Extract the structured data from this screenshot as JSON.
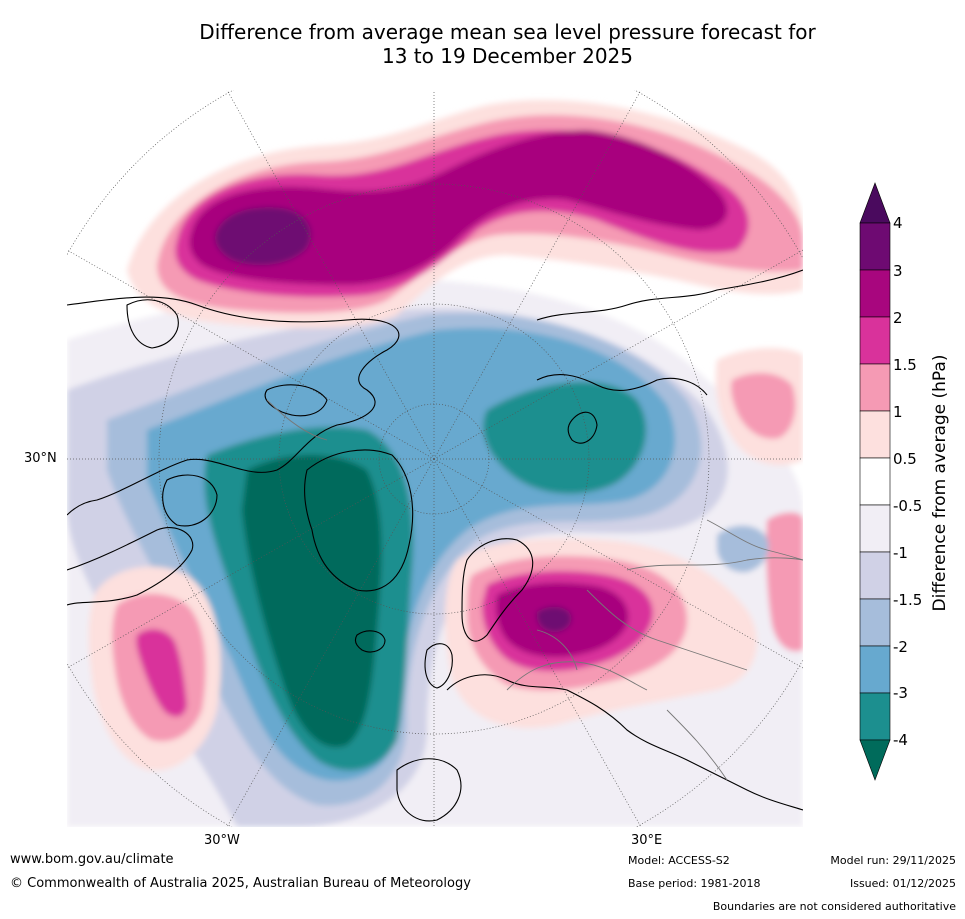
{
  "title": {
    "line1": "Difference from average mean sea level pressure forecast for",
    "line2": "13 to 19 December 2025"
  },
  "map": {
    "projection": "north polar stereographic",
    "lat_label": "30°N",
    "lon_label_left": "30°W",
    "lon_label_right": "30°E"
  },
  "colorbar": {
    "title": "Difference from average (hPa)",
    "ticks": [
      "4",
      "3",
      "2",
      "1.5",
      "1",
      "0.5",
      "-0.5",
      "-1",
      "-1.5",
      "-2",
      "-3",
      "-4"
    ],
    "bins": [
      {
        "range": "> 4",
        "color": "#4a0a5e"
      },
      {
        "range": "3 to 4",
        "color": "#6e0a72"
      },
      {
        "range": "2 to 3",
        "color": "#a8067e"
      },
      {
        "range": "1.5 to 2",
        "color": "#d9329b"
      },
      {
        "range": "1 to 1.5",
        "color": "#f59ab4"
      },
      {
        "range": "0.5 to 1",
        "color": "#fde0de"
      },
      {
        "range": "-0.5 to 0.5",
        "color": "#ffffff"
      },
      {
        "range": "-1 to -0.5",
        "color": "#f1eef5"
      },
      {
        "range": "-1.5 to -1",
        "color": "#d0d1e6"
      },
      {
        "range": "-2 to -1.5",
        "color": "#a6bddb"
      },
      {
        "range": "-3 to -2",
        "color": "#67a9cf"
      },
      {
        "range": "-4 to -3",
        "color": "#1c8f8f"
      },
      {
        "range": "< -4",
        "color": "#006b5b"
      }
    ]
  },
  "footer": {
    "website": "www.bom.gov.au/climate",
    "copyright": "© Commonwealth of Australia 2025, Australian Bureau of Meteorology",
    "model": "Model: ACCESS-S2",
    "base_period": "Base period: 1981-2018",
    "model_run": "Model run: 29/11/2025",
    "issued": "Issued: 01/12/2025",
    "disclaimer": "Boundaries are not considered authoritative"
  }
}
